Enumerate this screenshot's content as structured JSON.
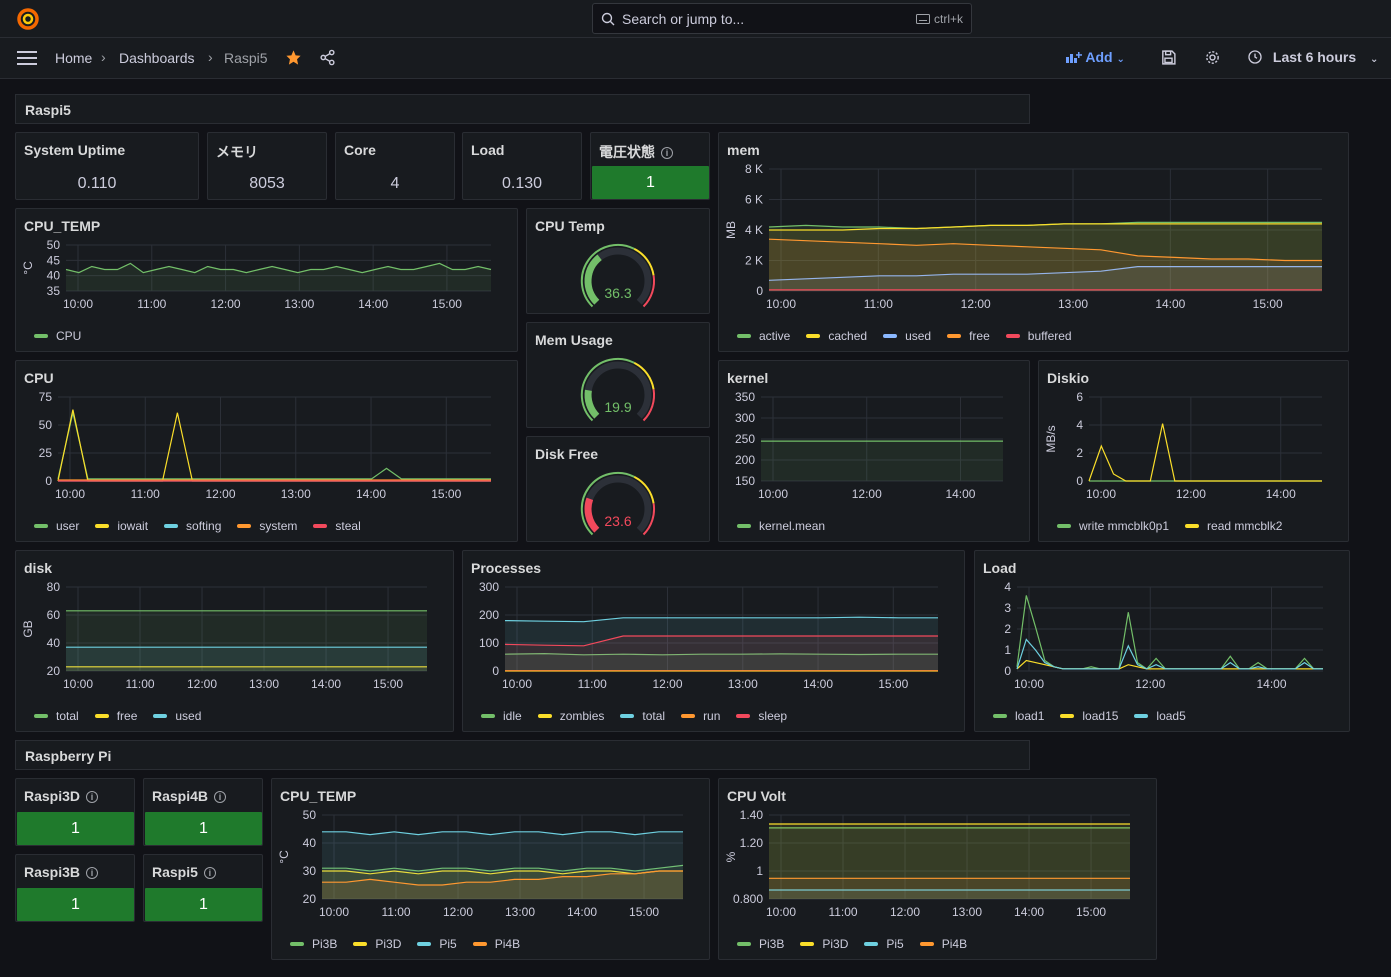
{
  "topbar": {
    "search_placeholder": "Search or jump to...",
    "shortcut": "ctrl+k"
  },
  "nav": {
    "breadcrumb": [
      "Home",
      "Dashboards",
      "Raspi5"
    ],
    "add_label": "Add",
    "time_range": "Last 6 hours"
  },
  "rows": [
    "Raspi5",
    "Raspberry Pi"
  ],
  "colors": {
    "green": "#73bf69",
    "yellow": "#fade2a",
    "blue": "#8ab8ff",
    "cyan": "#6ed0e0",
    "orange": "#ff9830",
    "red": "#f2495c",
    "stat_green": "#1f7a2c"
  },
  "stats": [
    {
      "title": "System Uptime",
      "value": "0.110"
    },
    {
      "title": "メモリ",
      "value": "8053"
    },
    {
      "title": "Core",
      "value": "4"
    },
    {
      "title": "Load",
      "value": "0.130"
    },
    {
      "title": "電圧状態",
      "value": "1"
    }
  ],
  "gauges": [
    {
      "title": "CPU Temp",
      "value": "36.3",
      "fraction": 0.36,
      "color": "#73bf69"
    },
    {
      "title": "Mem Usage",
      "value": "19.9",
      "fraction": 0.2,
      "color": "#73bf69"
    },
    {
      "title": "Disk Free",
      "value": "23.6",
      "fraction": 0.24,
      "color": "#f2495c"
    }
  ],
  "pi_stats": [
    {
      "title": "Raspi3D",
      "value": "1"
    },
    {
      "title": "Raspi4B",
      "value": "1"
    },
    {
      "title": "Raspi3B",
      "value": "1"
    },
    {
      "title": "Raspi5",
      "value": "1"
    }
  ],
  "chart_data": [
    {
      "id": "cpu_temp",
      "type": "line",
      "title": "CPU_TEMP",
      "ylabel": "°C",
      "ylim": [
        35,
        50
      ],
      "yticks": [
        "50",
        "45",
        "40",
        "35"
      ],
      "xticks": [
        "10:00",
        "11:00",
        "12:00",
        "13:00",
        "14:00",
        "15:00"
      ],
      "series": [
        {
          "name": "CPU",
          "color": "#73bf69",
          "values": [
            42,
            41,
            43,
            42,
            42,
            44,
            41,
            42,
            43,
            42,
            41,
            43,
            42,
            42,
            41,
            42,
            43,
            42,
            41,
            42,
            42,
            43,
            42,
            41,
            42,
            43,
            42,
            42,
            43,
            44,
            42,
            42,
            43,
            42
          ]
        }
      ]
    },
    {
      "id": "mem",
      "type": "line",
      "title": "mem",
      "ylabel": "MB",
      "ylim": [
        0,
        8000
      ],
      "yticks": [
        "8 K",
        "6 K",
        "4 K",
        "2 K",
        "0"
      ],
      "xticks": [
        "10:00",
        "11:00",
        "12:00",
        "13:00",
        "14:00",
        "15:00"
      ],
      "series": [
        {
          "name": "active",
          "color": "#73bf69",
          "values": [
            4200,
            4300,
            4200,
            4200,
            4100,
            4200,
            4300,
            4300,
            4400,
            4400,
            4500,
            4500,
            4500,
            4500,
            4500,
            4500
          ]
        },
        {
          "name": "cached",
          "color": "#fade2a",
          "values": [
            4000,
            4000,
            4000,
            4100,
            4100,
            4200,
            4300,
            4300,
            4400,
            4400,
            4400,
            4400,
            4400,
            4400,
            4400,
            4400
          ]
        },
        {
          "name": "used",
          "color": "#8ab8ff",
          "values": [
            700,
            800,
            900,
            1000,
            1000,
            1100,
            1100,
            1100,
            1200,
            1300,
            1600,
            1600,
            1600,
            1600,
            1600,
            1600
          ]
        },
        {
          "name": "free",
          "color": "#ff9830",
          "values": [
            3400,
            3300,
            3200,
            3100,
            3000,
            3100,
            3000,
            2900,
            2800,
            2700,
            2300,
            2200,
            2100,
            2100,
            2000,
            2000
          ]
        },
        {
          "name": "buffered",
          "color": "#f2495c",
          "values": [
            80,
            80,
            80,
            80,
            80,
            80,
            80,
            80,
            80,
            80,
            80,
            80,
            80,
            80,
            80,
            80
          ]
        }
      ]
    },
    {
      "id": "cpu",
      "type": "line",
      "title": "CPU",
      "ylabel": "",
      "ylim": [
        0,
        80
      ],
      "yticks": [
        "75",
        "50",
        "25",
        "0"
      ],
      "xticks": [
        "10:00",
        "11:00",
        "12:00",
        "13:00",
        "14:00",
        "15:00"
      ],
      "series": [
        {
          "name": "user",
          "color": "#73bf69",
          "values": [
            2,
            65,
            2,
            2,
            2,
            2,
            2,
            2,
            2,
            2,
            2,
            2,
            2,
            2,
            2,
            2,
            2,
            2,
            2,
            2,
            2,
            2,
            12,
            2,
            2,
            2,
            2,
            2,
            2,
            2
          ]
        },
        {
          "name": "iowait",
          "color": "#fade2a",
          "values": [
            0,
            68,
            0,
            0,
            0,
            0,
            0,
            0,
            65,
            0,
            0,
            0,
            0,
            0,
            0,
            0,
            0,
            0,
            0,
            0,
            0,
            0,
            0,
            0,
            0,
            0,
            0,
            0,
            0,
            0
          ]
        },
        {
          "name": "softing",
          "color": "#6ed0e0",
          "values": [
            0,
            0,
            0,
            0,
            0,
            0,
            0,
            0,
            0,
            0,
            0,
            0,
            0,
            0,
            0,
            0,
            0,
            0,
            0,
            0,
            0,
            0,
            0,
            0,
            0,
            0,
            0,
            0,
            0,
            0
          ]
        },
        {
          "name": "system",
          "color": "#ff9830",
          "values": [
            1,
            1,
            1,
            1,
            1,
            1,
            1,
            1,
            1,
            1,
            1,
            1,
            1,
            1,
            1,
            1,
            1,
            1,
            1,
            1,
            1,
            1,
            1,
            1,
            1,
            1,
            1,
            1,
            1,
            1
          ]
        },
        {
          "name": "steal",
          "color": "#f2495c",
          "values": [
            0,
            0,
            0,
            0,
            0,
            0,
            0,
            0,
            0,
            0,
            0,
            0,
            0,
            0,
            0,
            0,
            0,
            0,
            0,
            0,
            0,
            0,
            0,
            0,
            0,
            0,
            0,
            0,
            0,
            0
          ]
        }
      ]
    },
    {
      "id": "kernel",
      "type": "line",
      "title": "kernel",
      "ylabel": "",
      "ylim": [
        150,
        350
      ],
      "yticks": [
        "350",
        "300",
        "250",
        "200",
        "150"
      ],
      "xticks": [
        "10:00",
        "12:00",
        "14:00"
      ],
      "series": [
        {
          "name": "kernel.mean",
          "color": "#73bf69",
          "values": [
            245,
            245,
            245,
            245,
            245,
            245
          ]
        }
      ]
    },
    {
      "id": "diskio",
      "type": "line",
      "title": "Diskio",
      "ylabel": "MB/s",
      "ylim": [
        0,
        6
      ],
      "yticks": [
        "6",
        "4",
        "2",
        "0"
      ],
      "xticks": [
        "10:00",
        "12:00",
        "14:00"
      ],
      "series": [
        {
          "name": "write mmcblk0p1",
          "color": "#73bf69",
          "values": [
            0,
            0,
            0,
            0,
            0,
            0,
            0,
            0,
            0,
            0,
            0,
            0,
            0,
            0,
            0,
            0,
            0,
            0,
            0,
            0
          ]
        },
        {
          "name": "read mmcblk2",
          "color": "#fade2a",
          "values": [
            0,
            2.5,
            0.5,
            0,
            0,
            0,
            4.1,
            0,
            0,
            0,
            0,
            0,
            0,
            0,
            0,
            0,
            0,
            0,
            0,
            0
          ]
        }
      ]
    },
    {
      "id": "disk",
      "type": "line",
      "title": "disk",
      "ylabel": "GB",
      "ylim": [
        20,
        80
      ],
      "yticks": [
        "80",
        "60",
        "40",
        "20"
      ],
      "xticks": [
        "10:00",
        "11:00",
        "12:00",
        "13:00",
        "14:00",
        "15:00"
      ],
      "series": [
        {
          "name": "total",
          "color": "#73bf69",
          "values": [
            63,
            63,
            63,
            63,
            63,
            63
          ]
        },
        {
          "name": "free",
          "color": "#fade2a",
          "values": [
            23,
            23,
            23,
            23,
            23,
            23
          ]
        },
        {
          "name": "used",
          "color": "#6ed0e0",
          "values": [
            37,
            37,
            37,
            37,
            37,
            37
          ]
        }
      ]
    },
    {
      "id": "processes",
      "type": "line",
      "title": "Processes",
      "ylabel": "",
      "ylim": [
        0,
        300
      ],
      "yticks": [
        "300",
        "200",
        "100",
        "0"
      ],
      "xticks": [
        "10:00",
        "11:00",
        "12:00",
        "13:00",
        "14:00",
        "15:00"
      ],
      "series": [
        {
          "name": "idle",
          "color": "#73bf69",
          "values": [
            60,
            62,
            58,
            60,
            58,
            60,
            60,
            61,
            60,
            59,
            60,
            60
          ]
        },
        {
          "name": "zombies",
          "color": "#fade2a",
          "values": [
            0,
            0,
            0,
            0,
            0,
            0,
            0,
            0,
            0,
            0,
            0,
            0
          ]
        },
        {
          "name": "total",
          "color": "#6ed0e0",
          "values": [
            180,
            178,
            176,
            190,
            190,
            190,
            190,
            190,
            190,
            192,
            190,
            190
          ]
        },
        {
          "name": "run",
          "color": "#ff9830",
          "values": [
            1,
            1,
            1,
            1,
            1,
            1,
            1,
            1,
            1,
            1,
            1,
            1
          ]
        },
        {
          "name": "sleep",
          "color": "#f2495c",
          "values": [
            95,
            92,
            90,
            125,
            125,
            125,
            125,
            125,
            125,
            125,
            125,
            125
          ]
        }
      ]
    },
    {
      "id": "load",
      "type": "line",
      "title": "Load",
      "ylabel": "",
      "ylim": [
        0,
        4
      ],
      "yticks": [
        "4",
        "3",
        "2",
        "1",
        "0"
      ],
      "xticks": [
        "10:00",
        "12:00",
        "14:00"
      ],
      "series": [
        {
          "name": "load1",
          "color": "#73bf69",
          "values": [
            0.2,
            3.6,
            2.1,
            0.5,
            0.2,
            0.1,
            0.1,
            0.1,
            0.2,
            0.1,
            0.1,
            0.1,
            2.8,
            0.4,
            0.1,
            0.6,
            0.1,
            0.1,
            0.1,
            0.1,
            0.1,
            0.1,
            0.1,
            0.7,
            0.1,
            0.1,
            0.4,
            0.1,
            0.1,
            0.1,
            0.1,
            0.6,
            0.1,
            0.1
          ]
        },
        {
          "name": "load15",
          "color": "#fade2a",
          "values": [
            0.1,
            0.5,
            0.4,
            0.3,
            0.2,
            0.1,
            0.1,
            0.1,
            0.1,
            0.1,
            0.1,
            0.1,
            0.3,
            0.2,
            0.1,
            0.1,
            0.1,
            0.1,
            0.1,
            0.1,
            0.1,
            0.1,
            0.1,
            0.1,
            0.1,
            0.1,
            0.1,
            0.1,
            0.1,
            0.1,
            0.1,
            0.1,
            0.1,
            0.1
          ]
        },
        {
          "name": "load5",
          "color": "#6ed0e0",
          "values": [
            0.1,
            1.5,
            1.0,
            0.4,
            0.2,
            0.1,
            0.1,
            0.1,
            0.1,
            0.1,
            0.1,
            0.1,
            1.2,
            0.3,
            0.1,
            0.3,
            0.1,
            0.1,
            0.1,
            0.1,
            0.1,
            0.1,
            0.1,
            0.4,
            0.1,
            0.1,
            0.2,
            0.1,
            0.1,
            0.1,
            0.1,
            0.4,
            0.1,
            0.1
          ]
        }
      ]
    },
    {
      "id": "pi_temp",
      "type": "line",
      "title": "CPU_TEMP",
      "ylabel": "°C",
      "ylim": [
        20,
        50
      ],
      "yticks": [
        "50",
        "40",
        "30",
        "20"
      ],
      "xticks": [
        "10:00",
        "11:00",
        "12:00",
        "13:00",
        "14:00",
        "15:00"
      ],
      "series": [
        {
          "name": "Pi3B",
          "color": "#73bf69",
          "values": [
            31,
            31,
            30,
            31,
            30,
            31,
            31,
            30,
            31,
            31,
            30,
            31,
            31,
            30,
            31,
            32
          ]
        },
        {
          "name": "Pi3D",
          "color": "#fade2a",
          "values": [
            30,
            30,
            29,
            30,
            29,
            30,
            30,
            29,
            30,
            30,
            29,
            30,
            30,
            29,
            30,
            30
          ]
        },
        {
          "name": "Pi5",
          "color": "#6ed0e0",
          "values": [
            44,
            44,
            43,
            44,
            43,
            44,
            44,
            43,
            44,
            44,
            43,
            44,
            44,
            43,
            44,
            44
          ]
        },
        {
          "name": "Pi4B",
          "color": "#ff9830",
          "values": [
            26,
            26,
            27,
            26,
            25,
            25,
            26,
            26,
            27,
            27,
            28,
            28,
            29,
            29,
            30,
            30
          ]
        }
      ]
    },
    {
      "id": "volt",
      "type": "line",
      "title": "CPU Volt",
      "ylabel": "%",
      "ylim": [
        0.8,
        1.45
      ],
      "yticks": [
        "1.40",
        "1.20",
        "1",
        "0.800"
      ],
      "xticks": [
        "10:00",
        "11:00",
        "12:00",
        "13:00",
        "14:00",
        "15:00"
      ],
      "series": [
        {
          "name": "Pi3B",
          "color": "#73bf69",
          "values": [
            1.35,
            1.35,
            1.35,
            1.35,
            1.35,
            1.35
          ]
        },
        {
          "name": "Pi3D",
          "color": "#fade2a",
          "values": [
            1.38,
            1.38,
            1.38,
            1.38,
            1.38,
            1.38
          ]
        },
        {
          "name": "Pi5",
          "color": "#6ed0e0",
          "values": [
            0.87,
            0.87,
            0.87,
            0.87,
            0.87,
            0.87
          ]
        },
        {
          "name": "Pi4B",
          "color": "#ff9830",
          "values": [
            0.96,
            0.96,
            0.96,
            0.96,
            0.96,
            0.96
          ]
        }
      ]
    }
  ]
}
